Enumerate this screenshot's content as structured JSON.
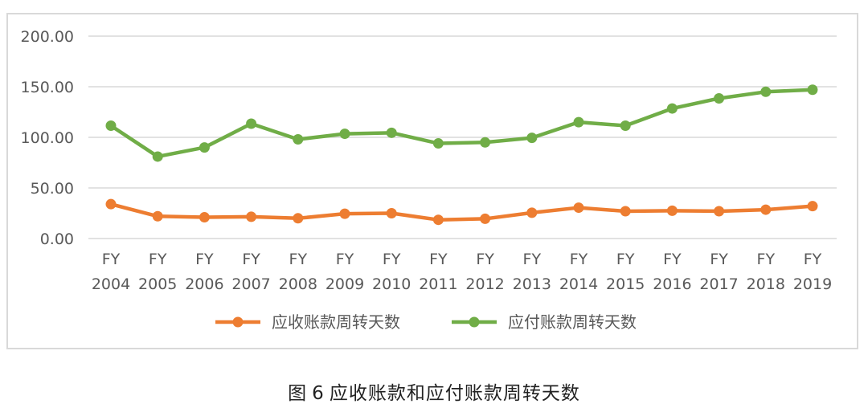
{
  "caption": {
    "prefix": "图",
    "number": "6",
    "text": "应收账款和应付账款周转天数"
  },
  "colors": {
    "receivable": "#ed7d31",
    "payable": "#70ad47",
    "grid": "#d9d9d9",
    "text": "#595959"
  },
  "chart_data": {
    "type": "line",
    "categories": [
      [
        "FY",
        "2004"
      ],
      [
        "FY",
        "2005"
      ],
      [
        "FY",
        "2006"
      ],
      [
        "FY",
        "2007"
      ],
      [
        "FY",
        "2008"
      ],
      [
        "FY",
        "2009"
      ],
      [
        "FY",
        "2010"
      ],
      [
        "FY",
        "2011"
      ],
      [
        "FY",
        "2012"
      ],
      [
        "FY",
        "2013"
      ],
      [
        "FY",
        "2014"
      ],
      [
        "FY",
        "2015"
      ],
      [
        "FY",
        "2016"
      ],
      [
        "FY",
        "2017"
      ],
      [
        "FY",
        "2018"
      ],
      [
        "FY",
        "2019"
      ]
    ],
    "ylim": [
      0,
      200
    ],
    "yticks": [
      "0.00",
      "50.00",
      "100.00",
      "150.00",
      "200.00"
    ],
    "grid": true,
    "legend_position": "bottom",
    "series": [
      {
        "name": "应收账款周转天数",
        "color": "#ed7d31",
        "values": [
          34,
          22,
          21,
          21.5,
          20,
          24.5,
          25,
          18.5,
          19.5,
          25.5,
          30.5,
          27,
          27.5,
          27,
          28.5,
          32
        ]
      },
      {
        "name": "应付账款周转天数",
        "color": "#70ad47",
        "values": [
          111.5,
          81,
          90,
          113.5,
          98,
          103.5,
          104.5,
          94,
          95,
          99.5,
          115,
          111.5,
          128.5,
          138.5,
          145,
          147
        ]
      }
    ]
  }
}
